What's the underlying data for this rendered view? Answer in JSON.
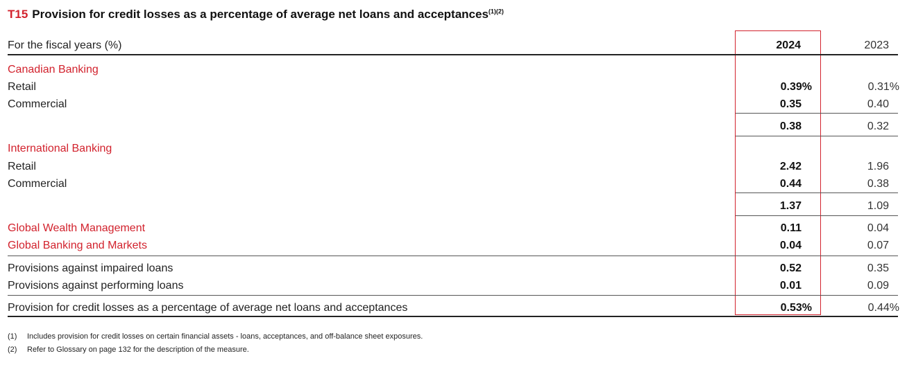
{
  "title": {
    "code": "T15",
    "text": "Provision for credit losses as a percentage of average net loans and acceptances",
    "sup": "(1)(2)"
  },
  "header": {
    "label": "For the fiscal years (%)",
    "col_2024": "2024",
    "col_2023": "2023"
  },
  "rows": [
    {
      "label": "Canadian Banking",
      "v2024": "",
      "v2023": ""
    },
    {
      "label": "Retail",
      "v2024": "0.39%",
      "v2023": "0.31%"
    },
    {
      "label": "Commercial",
      "v2024": "0.35",
      "v2023": "0.40"
    },
    {
      "label": "",
      "v2024": "0.38",
      "v2023": "0.32"
    },
    {
      "label": "International Banking",
      "v2024": "",
      "v2023": ""
    },
    {
      "label": "Retail",
      "v2024": "2.42",
      "v2023": "1.96"
    },
    {
      "label": "Commercial",
      "v2024": "0.44",
      "v2023": "0.38"
    },
    {
      "label": "",
      "v2024": "1.37",
      "v2023": "1.09"
    },
    {
      "label": "Global Wealth Management",
      "v2024": "0.11",
      "v2023": "0.04"
    },
    {
      "label": "Global Banking and Markets",
      "v2024": "0.04",
      "v2023": "0.07"
    },
    {
      "label": "Provisions against impaired loans",
      "v2024": "0.52",
      "v2023": "0.35"
    },
    {
      "label": "Provisions against performing loans",
      "v2024": "0.01",
      "v2023": "0.09"
    },
    {
      "label": "Provision for credit losses as a percentage of average net loans and acceptances",
      "v2024": "0.53%",
      "v2023": "0.44%"
    }
  ],
  "footnotes": [
    {
      "num": "(1)",
      "text": "Includes provision for credit losses on certain financial assets - loans, acceptances, and off-balance sheet exposures."
    },
    {
      "num": "(2)",
      "text": "Refer to Glossary on page 132 for the description of the measure."
    }
  ],
  "colors": {
    "accent": "#d2222d"
  }
}
